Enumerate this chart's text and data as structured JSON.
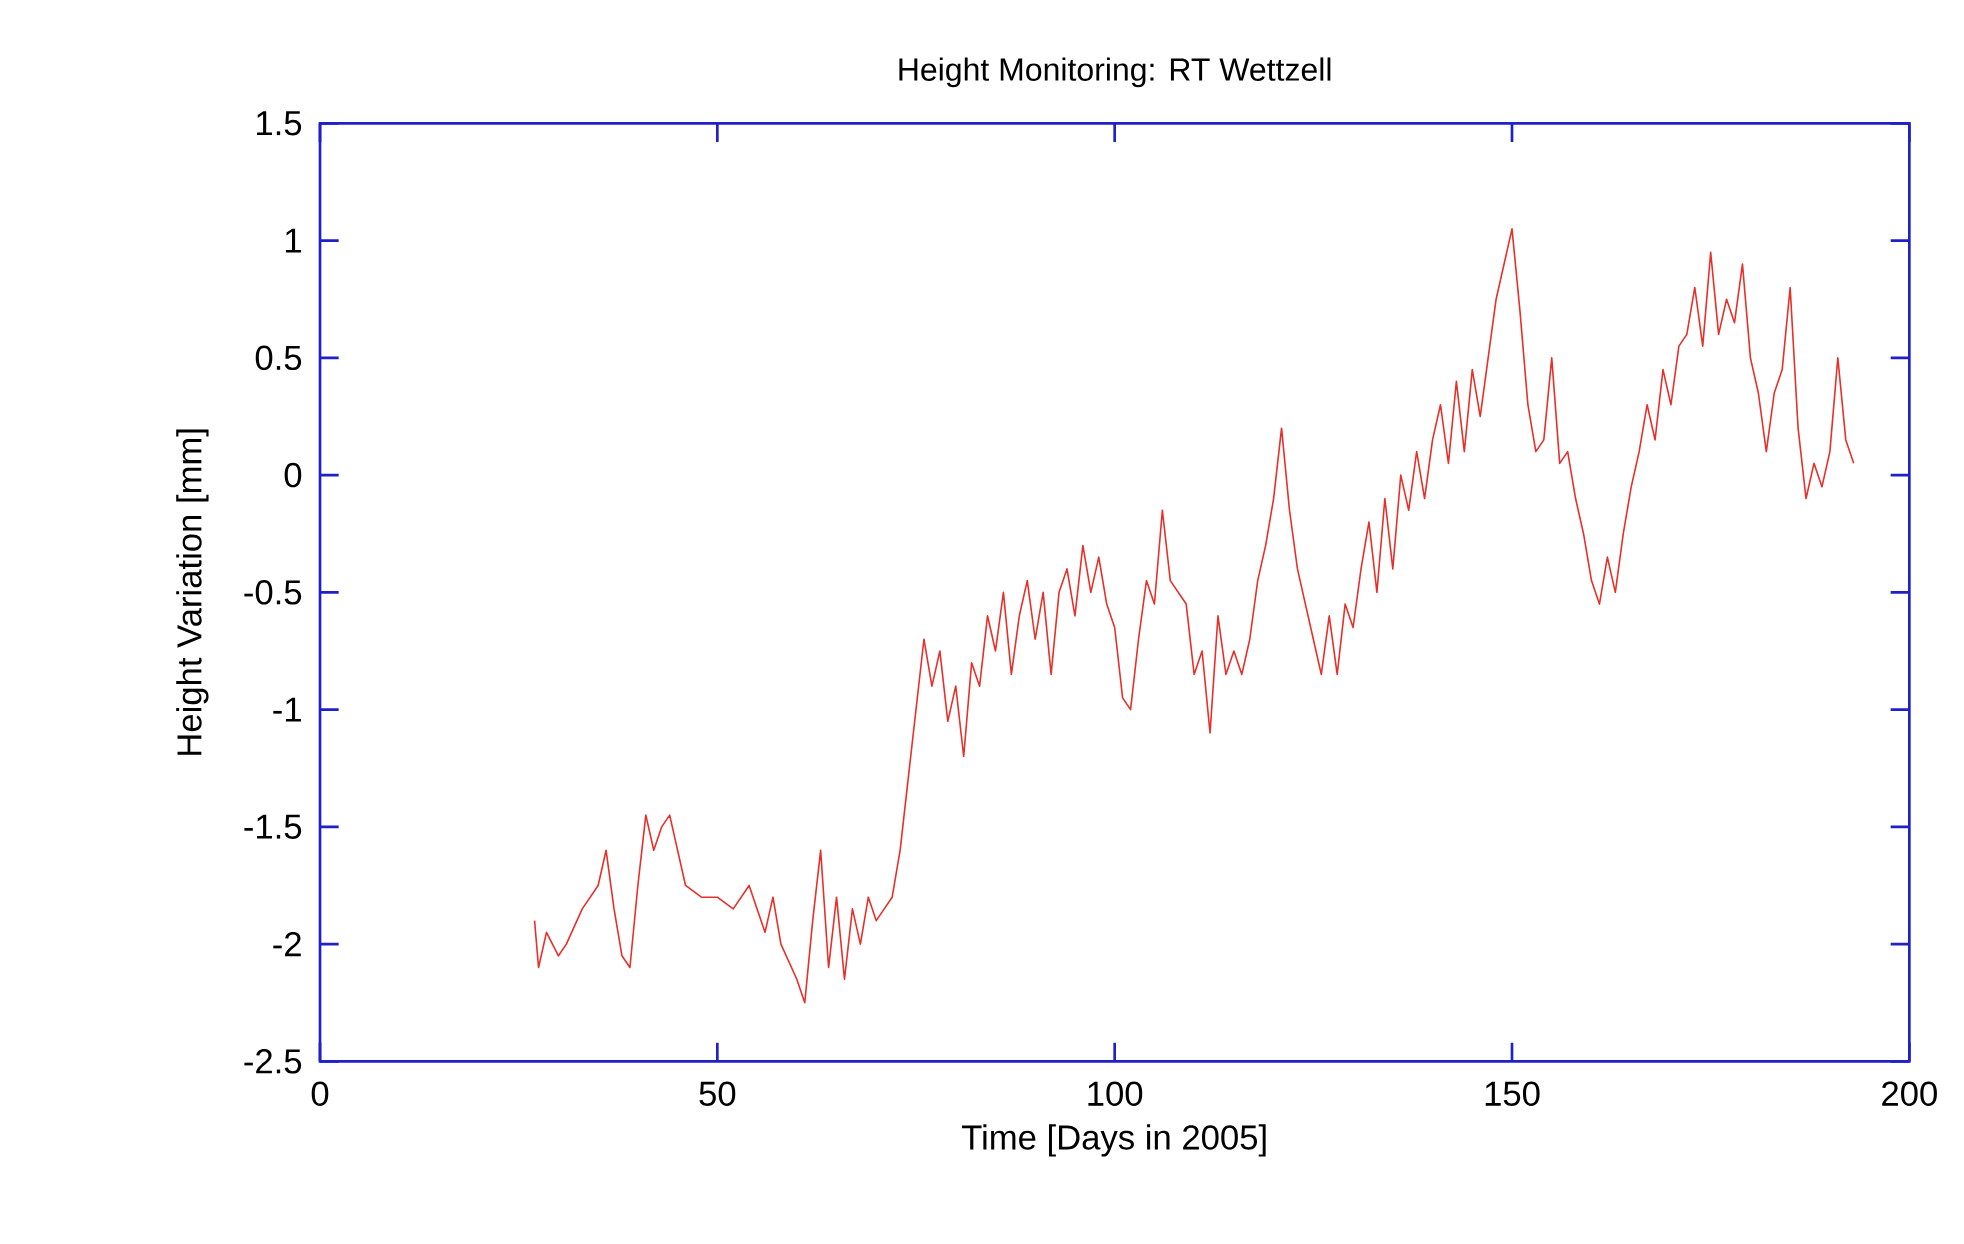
{
  "chart_data": {
    "type": "line",
    "title": "Height Monitoring: RT Wettzell",
    "xlabel": "Time [Days in 2005]",
    "ylabel": "Height Variation [mm]",
    "xlim": [
      0,
      200
    ],
    "ylim": [
      -2.5,
      1.5
    ],
    "xticks": [
      0,
      50,
      100,
      150,
      200
    ],
    "yticks": [
      -2.5,
      -2,
      -1.5,
      -1,
      -0.5,
      0,
      0.5,
      1,
      1.5
    ],
    "grid": false,
    "series": [
      {
        "color": "#e8302a",
        "x": [
          27,
          27.5,
          28.5,
          30,
          31,
          33,
          35,
          36,
          37,
          38,
          39,
          40,
          41,
          42,
          43,
          44,
          45,
          46,
          48,
          50,
          52,
          54,
          55,
          56,
          57,
          58,
          60,
          61,
          62,
          63,
          64,
          65,
          66,
          67,
          68,
          69,
          70,
          71,
          72,
          73,
          74,
          75,
          76,
          77,
          78,
          79,
          80,
          81,
          82,
          83,
          84,
          85,
          86,
          87,
          88,
          89,
          90,
          91,
          92,
          93,
          94,
          95,
          96,
          97,
          98,
          99,
          100,
          101,
          102,
          103,
          104,
          105,
          106,
          107,
          108,
          109,
          110,
          111,
          112,
          113,
          114,
          115,
          116,
          117,
          118,
          119,
          120,
          121,
          122,
          123,
          124,
          125,
          126,
          127,
          128,
          129,
          130,
          131,
          132,
          133,
          134,
          135,
          136,
          137,
          138,
          139,
          140,
          141,
          142,
          143,
          144,
          145,
          146,
          147,
          148,
          149,
          150,
          151,
          152,
          153,
          154,
          155,
          156,
          157,
          158,
          159,
          160,
          161,
          162,
          163,
          164,
          165,
          166,
          167,
          168,
          169,
          170,
          171,
          172,
          173,
          174,
          175,
          176,
          177,
          178,
          179,
          180,
          181,
          182,
          183,
          184,
          185,
          186,
          187,
          188,
          189,
          190,
          191,
          192,
          193
        ],
        "values": [
          -1.9,
          -2.1,
          -1.95,
          -2.05,
          -2.0,
          -1.85,
          -1.75,
          -1.6,
          -1.85,
          -2.05,
          -2.1,
          -1.75,
          -1.45,
          -1.6,
          -1.5,
          -1.45,
          -1.6,
          -1.75,
          -1.8,
          -1.8,
          -1.85,
          -1.75,
          -1.85,
          -1.95,
          -1.8,
          -2.0,
          -2.15,
          -2.25,
          -1.9,
          -1.6,
          -2.1,
          -1.8,
          -2.15,
          -1.85,
          -2.0,
          -1.8,
          -1.9,
          -1.85,
          -1.8,
          -1.6,
          -1.3,
          -1.0,
          -0.7,
          -0.9,
          -0.75,
          -1.05,
          -0.9,
          -1.2,
          -0.8,
          -0.9,
          -0.6,
          -0.75,
          -0.5,
          -0.85,
          -0.6,
          -0.45,
          -0.7,
          -0.5,
          -0.85,
          -0.5,
          -0.4,
          -0.6,
          -0.3,
          -0.5,
          -0.35,
          -0.55,
          -0.65,
          -0.95,
          -1.0,
          -0.7,
          -0.45,
          -0.55,
          -0.15,
          -0.45,
          -0.5,
          -0.55,
          -0.85,
          -0.75,
          -1.1,
          -0.6,
          -0.85,
          -0.75,
          -0.85,
          -0.7,
          -0.45,
          -0.3,
          -0.1,
          0.2,
          -0.15,
          -0.4,
          -0.55,
          -0.7,
          -0.85,
          -0.6,
          -0.85,
          -0.55,
          -0.65,
          -0.4,
          -0.2,
          -0.5,
          -0.1,
          -0.4,
          0.0,
          -0.15,
          0.1,
          -0.1,
          0.15,
          0.3,
          0.05,
          0.4,
          0.1,
          0.45,
          0.25,
          0.5,
          0.75,
          0.9,
          1.05,
          0.7,
          0.3,
          0.1,
          0.15,
          0.5,
          0.05,
          0.1,
          -0.1,
          -0.25,
          -0.45,
          -0.55,
          -0.35,
          -0.5,
          -0.25,
          -0.05,
          0.1,
          0.3,
          0.15,
          0.45,
          0.3,
          0.55,
          0.6,
          0.8,
          0.55,
          0.95,
          0.6,
          0.75,
          0.65,
          0.9,
          0.5,
          0.35,
          0.1,
          0.35,
          0.45,
          0.8,
          0.2,
          -0.1,
          0.05,
          -0.05,
          0.1,
          0.5,
          0.15,
          0.05
        ]
      }
    ]
  }
}
